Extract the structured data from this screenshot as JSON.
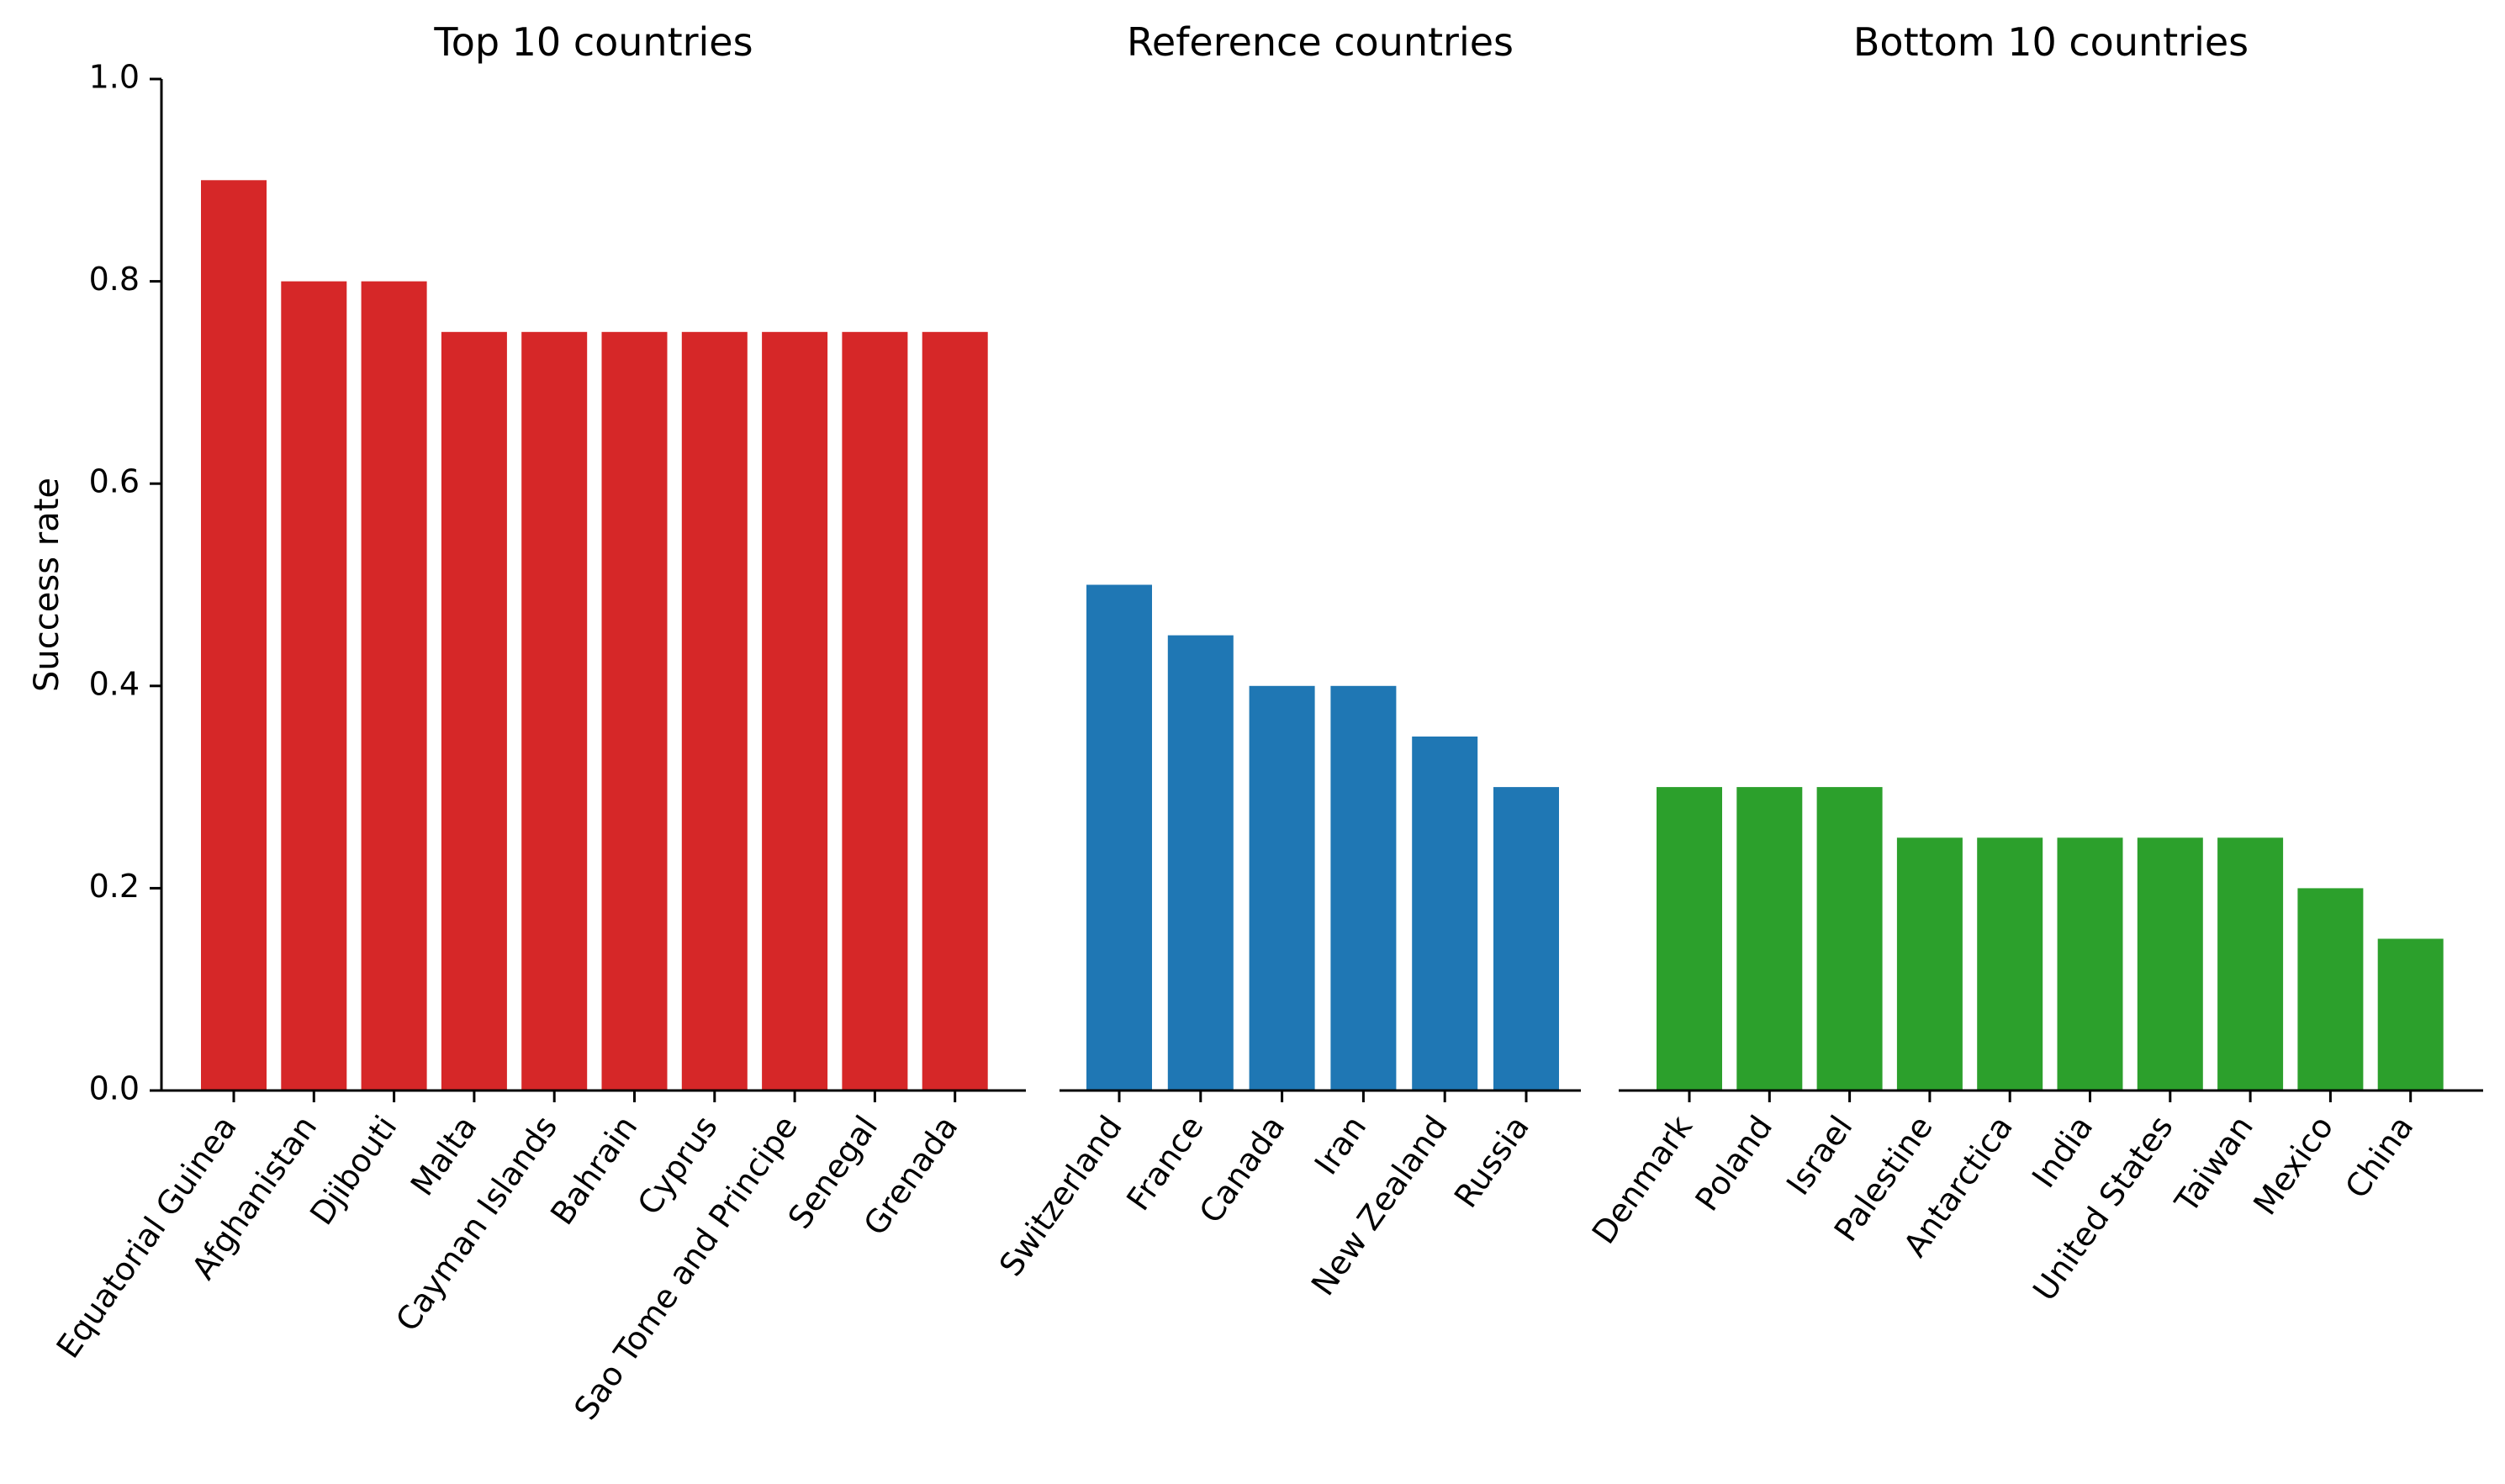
{
  "chart_data": [
    {
      "type": "bar",
      "title": "Top 10 countries",
      "ylabel": "Success rate",
      "ylim": [
        0,
        1.0
      ],
      "yticks": [
        "0.0",
        "0.2",
        "0.4",
        "0.6",
        "0.8",
        "1.0"
      ],
      "color": "#d62728",
      "categories": [
        "Equatorial Guinea",
        "Afghanistan",
        "Djibouti",
        "Malta",
        "Cayman Islands",
        "Bahrain",
        "Cyprus",
        "Sao Tome and Principe",
        "Senegal",
        "Grenada"
      ],
      "values": [
        0.9,
        0.8,
        0.8,
        0.75,
        0.75,
        0.75,
        0.75,
        0.75,
        0.75,
        0.75
      ]
    },
    {
      "type": "bar",
      "title": "Reference countries",
      "ylim": [
        0,
        1.0
      ],
      "color": "#1f77b4",
      "categories": [
        "Switzerland",
        "France",
        "Canada",
        "Iran",
        "New Zealand",
        "Russia"
      ],
      "values": [
        0.5,
        0.45,
        0.4,
        0.4,
        0.35,
        0.3
      ]
    },
    {
      "type": "bar",
      "title": "Bottom 10 countries",
      "ylim": [
        0,
        1.0
      ],
      "color": "#2ca02c",
      "categories": [
        "Denmark",
        "Poland",
        "Israel",
        "Palestine",
        "Antarctica",
        "India",
        "United States",
        "Taiwan",
        "Mexico",
        "China"
      ],
      "values": [
        0.3,
        0.3,
        0.3,
        0.25,
        0.25,
        0.25,
        0.25,
        0.25,
        0.2,
        0.15
      ]
    }
  ]
}
